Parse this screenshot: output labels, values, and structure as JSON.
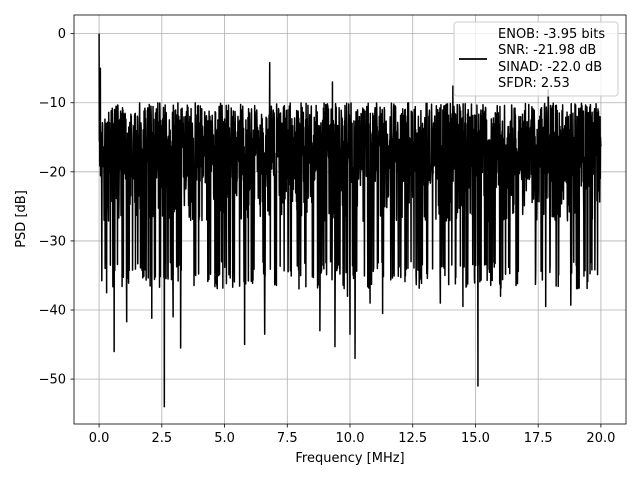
{
  "chart_data": {
    "type": "line",
    "title": "",
    "xlabel": "Frequency [MHz]",
    "ylabel": "PSD [dB]",
    "xlim": [
      -1.0,
      21.0
    ],
    "ylim": [
      -56.5,
      2.7
    ],
    "x_ticks": [
      0.0,
      2.5,
      5.0,
      7.5,
      10.0,
      12.5,
      15.0,
      17.5,
      20.0
    ],
    "x_tick_labels": [
      "0.0",
      "2.5",
      "5.0",
      "7.5",
      "10.0",
      "12.5",
      "15.0",
      "17.5",
      "20.0"
    ],
    "y_ticks": [
      0,
      -10,
      -20,
      -30,
      -40,
      -50
    ],
    "y_tick_labels": [
      "0",
      "−10",
      "−20",
      "−30",
      "−40",
      "−50"
    ],
    "grid": true,
    "legend_position": "top-right",
    "legend_entries": [
      "ENOB: -3.95 bits",
      "SNR: -21.98 dB",
      "SINAD: -22.0 dB",
      "SFDR: 2.53"
    ],
    "series": [
      {
        "color": "#000000",
        "x_range": [
          0.0,
          20.0
        ],
        "typical_upper_envelope": -10,
        "typical_lower_envelope": -33,
        "peak_points": [
          {
            "x": 0.0,
            "y": 0.0
          },
          {
            "x": 0.05,
            "y": -5.0
          },
          {
            "x": 6.8,
            "y": -4.2
          },
          {
            "x": 2.1,
            "y": -9.0
          },
          {
            "x": 9.3,
            "y": -7.0
          },
          {
            "x": 14.1,
            "y": -7.6
          },
          {
            "x": 17.9,
            "y": -8.2
          }
        ],
        "dip_points": [
          {
            "x": 2.6,
            "y": -54.0
          },
          {
            "x": 15.1,
            "y": -51.0
          },
          {
            "x": 10.2,
            "y": -47.0
          },
          {
            "x": 0.6,
            "y": -46.0
          },
          {
            "x": 3.25,
            "y": -45.5
          },
          {
            "x": 5.8,
            "y": -45.0
          },
          {
            "x": 9.4,
            "y": -45.3
          },
          {
            "x": 8.8,
            "y": -43.0
          },
          {
            "x": 6.6,
            "y": -43.5
          },
          {
            "x": 10.0,
            "y": -43.5
          },
          {
            "x": 1.1,
            "y": -41.7
          },
          {
            "x": 2.1,
            "y": -41.2
          },
          {
            "x": 2.95,
            "y": -41.0
          },
          {
            "x": 9.9,
            "y": -38.0
          },
          {
            "x": 10.8,
            "y": -39.0
          },
          {
            "x": 11.3,
            "y": -40.5
          },
          {
            "x": 13.6,
            "y": -39.0
          },
          {
            "x": 14.5,
            "y": -39.5
          },
          {
            "x": 16.0,
            "y": -38.0
          },
          {
            "x": 17.8,
            "y": -39.5
          },
          {
            "x": 18.8,
            "y": -39.3
          },
          {
            "x": 0.3,
            "y": -37.5
          }
        ]
      }
    ]
  }
}
